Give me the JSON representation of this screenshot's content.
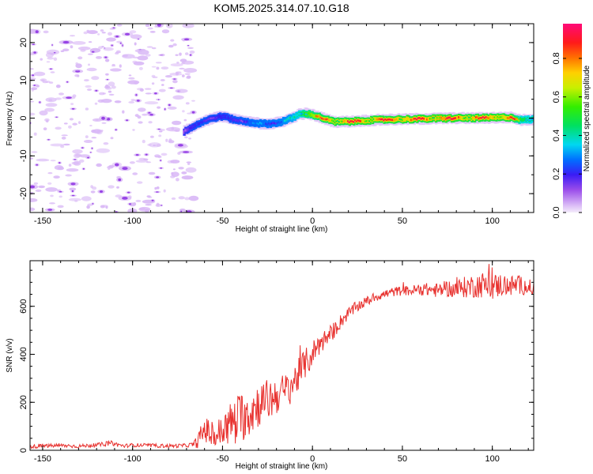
{
  "figure_title": "KOM5.2025.314.07.10.G18",
  "colors": {
    "snr_line": "#e8322f",
    "track_core": "#e03020",
    "noise_light": "#d9b8f6",
    "noise_dark": "#8a2be2"
  },
  "colorbar": {
    "label": "Normalized spectral amplitude",
    "ticks": [
      "0.0",
      "0.2",
      "0.4",
      "0.6",
      "0.8"
    ],
    "tick_values": [
      0.0,
      0.2,
      0.4,
      0.6,
      0.8
    ],
    "range": [
      0,
      0.98
    ],
    "colormap": "hsv-rainbow (violet → blue → cyan → green → yellow → red → magenta)"
  },
  "chart_data": [
    {
      "type": "heatmap",
      "name": "spectrogram",
      "title": "KOM5.2025.314.07.10.G18",
      "xlabel": "Height of straight line (km)",
      "ylabel": "Frequency (Hz)",
      "xlim": [
        -157,
        123
      ],
      "ylim": [
        -25,
        25
      ],
      "x_ticks": [
        -150,
        -100,
        -50,
        0,
        50,
        100
      ],
      "x_tick_labels": [
        "-150",
        "-100",
        "-50",
        "0",
        "50",
        "100"
      ],
      "y_ticks": [
        -20,
        -10,
        0,
        10,
        20
      ],
      "y_tick_labels": [
        "-20",
        "-10",
        "0",
        "10",
        "20"
      ],
      "noise_region_x": [
        -157,
        -70
      ],
      "track": {
        "x": [
          -72,
          -68,
          -62,
          -56,
          -50,
          -46,
          -40,
          -34,
          -28,
          -22,
          -18,
          -12,
          -8,
          -4,
          0,
          4,
          8,
          12,
          20,
          30,
          40,
          50,
          60,
          70,
          80,
          90,
          100,
          110,
          115,
          123
        ],
        "freq": [
          -3.5,
          -2.5,
          -1.0,
          0.0,
          0.5,
          -0.2,
          -0.8,
          -1.2,
          -1.5,
          -1.4,
          -1.0,
          0.0,
          1.0,
          1.2,
          0.8,
          0.2,
          -0.5,
          -1.0,
          -0.9,
          -0.6,
          -0.4,
          -0.3,
          -0.2,
          -0.1,
          0.0,
          0.0,
          0.1,
          0.2,
          -0.5,
          -0.3
        ],
        "amplitude": [
          0.12,
          0.18,
          0.25,
          0.22,
          0.2,
          0.22,
          0.25,
          0.28,
          0.3,
          0.3,
          0.32,
          0.38,
          0.5,
          0.7,
          0.75,
          0.8,
          0.85,
          0.88,
          0.9,
          0.92,
          0.9,
          0.93,
          0.92,
          0.95,
          0.93,
          0.9,
          0.92,
          0.9,
          0.55,
          0.5
        ]
      }
    },
    {
      "type": "line",
      "name": "snr",
      "xlabel": "Height of straight line (km)",
      "ylabel": "SNR (v/v)",
      "xlim": [
        -157,
        123
      ],
      "ylim": [
        0,
        790
      ],
      "x_ticks": [
        -150,
        -100,
        -50,
        0,
        50,
        100
      ],
      "x_tick_labels": [
        "-150",
        "-100",
        "-50",
        "0",
        "50",
        "100"
      ],
      "y_ticks": [
        0,
        200,
        400,
        600
      ],
      "y_tick_labels": [
        "0",
        "200",
        "400",
        "600"
      ],
      "series": [
        {
          "name": "SNR",
          "x": [
            -157,
            -150,
            -140,
            -130,
            -120,
            -112,
            -105,
            -100,
            -90,
            -80,
            -70,
            -66,
            -63,
            -60,
            -57,
            -54,
            -50,
            -46,
            -42,
            -38,
            -35,
            -32,
            -28,
            -24,
            -20,
            -16,
            -12,
            -8,
            -5,
            -2,
            0,
            2,
            5,
            8,
            12,
            16,
            20,
            25,
            30,
            35,
            40,
            45,
            50,
            55,
            60,
            65,
            70,
            75,
            80,
            85,
            90,
            95,
            100,
            105,
            110,
            115,
            120,
            123
          ],
          "y": [
            15,
            18,
            20,
            17,
            22,
            30,
            18,
            22,
            20,
            18,
            20,
            25,
            45,
            90,
            70,
            60,
            80,
            110,
            130,
            150,
            160,
            180,
            200,
            210,
            230,
            240,
            270,
            310,
            350,
            380,
            400,
            430,
            450,
            470,
            500,
            540,
            570,
            600,
            620,
            640,
            650,
            660,
            665,
            665,
            670,
            670,
            665,
            675,
            670,
            680,
            685,
            690,
            680,
            690,
            685,
            690,
            680,
            675
          ],
          "noise_amplitude": [
            8,
            8,
            8,
            8,
            8,
            10,
            8,
            8,
            8,
            8,
            8,
            10,
            40,
            55,
            55,
            60,
            70,
            90,
            100,
            110,
            110,
            100,
            90,
            90,
            80,
            80,
            75,
            70,
            65,
            60,
            55,
            50,
            45,
            40,
            35,
            30,
            25,
            25,
            20,
            20,
            20,
            20,
            20,
            22,
            25,
            28,
            30,
            35,
            40,
            45,
            50,
            55,
            55,
            50,
            45,
            40,
            35,
            30
          ]
        }
      ]
    }
  ]
}
